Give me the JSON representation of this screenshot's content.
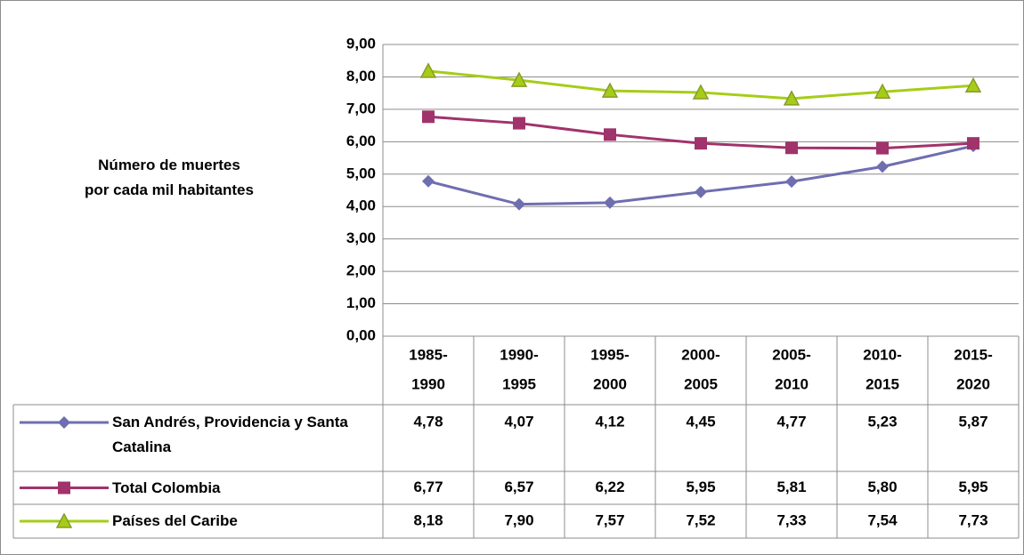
{
  "chart_data": {
    "type": "line",
    "y_label": "Número de muertes por cada mil habitantes",
    "categories": [
      [
        "1985-",
        "1990"
      ],
      [
        "1990-",
        "1995"
      ],
      [
        "1995-",
        "2000"
      ],
      [
        "2000-",
        "2005"
      ],
      [
        "2005-",
        "2010"
      ],
      [
        "2010-",
        "2015"
      ],
      [
        "2015-",
        "2020"
      ]
    ],
    "series": [
      {
        "name": "San Andrés, Providencia y Santa Catalina",
        "color": "#6e6eb0",
        "marker": "diamond",
        "values": [
          4.78,
          4.07,
          4.12,
          4.45,
          4.77,
          5.23,
          5.87
        ],
        "value_labels": [
          "4,78",
          "4,07",
          "4,12",
          "4,45",
          "4,77",
          "5,23",
          "5,87"
        ]
      },
      {
        "name": "Total Colombia",
        "color": "#a0336b",
        "marker": "square",
        "values": [
          6.77,
          6.57,
          6.22,
          5.95,
          5.81,
          5.8,
          5.95
        ],
        "value_labels": [
          "6,77",
          "6,57",
          "6,22",
          "5,95",
          "5,81",
          "5,80",
          "5,95"
        ]
      },
      {
        "name": "Países del Caribe",
        "color": "#a5cd17",
        "marker": "triangle",
        "values": [
          8.18,
          7.9,
          7.57,
          7.52,
          7.33,
          7.54,
          7.73
        ],
        "value_labels": [
          "8,18",
          "7,90",
          "7,57",
          "7,52",
          "7,33",
          "7,54",
          "7,73"
        ]
      }
    ],
    "ylim": [
      0,
      9
    ],
    "yticks": [
      {
        "value": 0,
        "label": "0,00"
      },
      {
        "value": 1,
        "label": "1,00"
      },
      {
        "value": 2,
        "label": "2,00"
      },
      {
        "value": 3,
        "label": "3,00"
      },
      {
        "value": 4,
        "label": "4,00"
      },
      {
        "value": 5,
        "label": "5,00"
      },
      {
        "value": 6,
        "label": "6,00"
      },
      {
        "value": 7,
        "label": "7,00"
      },
      {
        "value": 8,
        "label": "8,00"
      },
      {
        "value": 9,
        "label": "9,00"
      }
    ],
    "grid": true,
    "data_table": true
  }
}
